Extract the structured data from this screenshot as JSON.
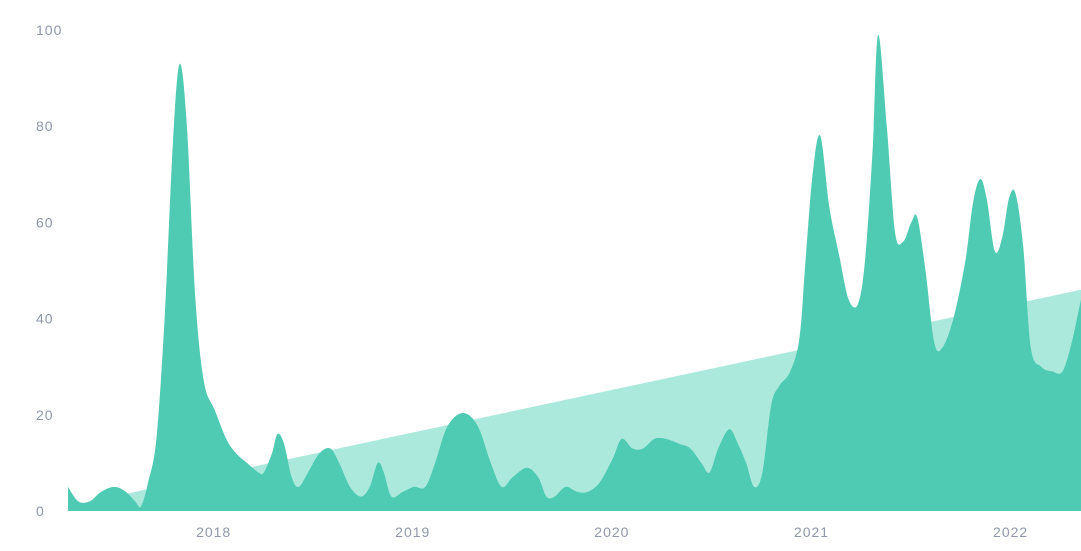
{
  "chart_data": {
    "type": "area",
    "ylim": [
      0,
      100
    ],
    "xlim": [
      "2017-05-01",
      "2022-06-01"
    ],
    "y_ticks": [
      "0",
      "20",
      "40",
      "60",
      "80",
      "100"
    ],
    "x_ticks": [
      {
        "label": "2018",
        "date": "2018-01-01"
      },
      {
        "label": "2019",
        "date": "2019-01-01"
      },
      {
        "label": "2020",
        "date": "2020-01-01"
      },
      {
        "label": "2021",
        "date": "2021-01-01"
      },
      {
        "label": "2022",
        "date": "2022-01-01"
      }
    ],
    "grid": false,
    "series": [
      {
        "id": "interest",
        "color": "#4ecbb2",
        "points": [
          [
            "2017-05-01",
            5
          ],
          [
            "2017-05-20",
            2
          ],
          [
            "2017-06-10",
            2
          ],
          [
            "2017-07-01",
            4
          ],
          [
            "2017-07-25",
            5
          ],
          [
            "2017-08-15",
            4
          ],
          [
            "2017-09-01",
            2
          ],
          [
            "2017-09-12",
            1
          ],
          [
            "2017-09-25",
            6
          ],
          [
            "2017-10-10",
            15
          ],
          [
            "2017-10-25",
            40
          ],
          [
            "2017-11-10",
            78
          ],
          [
            "2017-11-22",
            93
          ],
          [
            "2017-12-05",
            80
          ],
          [
            "2017-12-20",
            45
          ],
          [
            "2018-01-05",
            27
          ],
          [
            "2018-01-25",
            21
          ],
          [
            "2018-02-15",
            15
          ],
          [
            "2018-03-05",
            12
          ],
          [
            "2018-03-25",
            10
          ],
          [
            "2018-04-15",
            8
          ],
          [
            "2018-04-25",
            8
          ],
          [
            "2018-05-10",
            12
          ],
          [
            "2018-05-20",
            16
          ],
          [
            "2018-06-01",
            14
          ],
          [
            "2018-06-15",
            7
          ],
          [
            "2018-06-28",
            5
          ],
          [
            "2018-07-15",
            8
          ],
          [
            "2018-08-05",
            12
          ],
          [
            "2018-08-25",
            13
          ],
          [
            "2018-09-10",
            10
          ],
          [
            "2018-09-30",
            5
          ],
          [
            "2018-10-20",
            3
          ],
          [
            "2018-11-05",
            5
          ],
          [
            "2018-11-20",
            10
          ],
          [
            "2018-12-01",
            8
          ],
          [
            "2018-12-15",
            3
          ],
          [
            "2019-01-05",
            4
          ],
          [
            "2019-01-25",
            5
          ],
          [
            "2019-02-15",
            5
          ],
          [
            "2019-03-05",
            10
          ],
          [
            "2019-03-25",
            17
          ],
          [
            "2019-04-15",
            20
          ],
          [
            "2019-05-05",
            20
          ],
          [
            "2019-05-25",
            17
          ],
          [
            "2019-06-15",
            10
          ],
          [
            "2019-07-05",
            5
          ],
          [
            "2019-07-25",
            7
          ],
          [
            "2019-08-20",
            9
          ],
          [
            "2019-09-10",
            7
          ],
          [
            "2019-09-25",
            3
          ],
          [
            "2019-10-10",
            3
          ],
          [
            "2019-10-30",
            5
          ],
          [
            "2019-11-20",
            4
          ],
          [
            "2019-12-10",
            4
          ],
          [
            "2020-01-01",
            6
          ],
          [
            "2020-01-25",
            11
          ],
          [
            "2020-02-10",
            15
          ],
          [
            "2020-03-01",
            13
          ],
          [
            "2020-03-20",
            13
          ],
          [
            "2020-04-10",
            15
          ],
          [
            "2020-05-01",
            15
          ],
          [
            "2020-05-25",
            14
          ],
          [
            "2020-06-15",
            13
          ],
          [
            "2020-07-05",
            10
          ],
          [
            "2020-07-20",
            8
          ],
          [
            "2020-08-05",
            13
          ],
          [
            "2020-08-25",
            17
          ],
          [
            "2020-09-10",
            14
          ],
          [
            "2020-09-25",
            10
          ],
          [
            "2020-10-10",
            5
          ],
          [
            "2020-10-25",
            8
          ],
          [
            "2020-11-10",
            22
          ],
          [
            "2020-11-25",
            26
          ],
          [
            "2020-12-15",
            29
          ],
          [
            "2021-01-01",
            36
          ],
          [
            "2021-01-12",
            52
          ],
          [
            "2021-01-25",
            70
          ],
          [
            "2021-02-08",
            78
          ],
          [
            "2021-02-25",
            63
          ],
          [
            "2021-03-15",
            53
          ],
          [
            "2021-04-01",
            44
          ],
          [
            "2021-04-18",
            43
          ],
          [
            "2021-05-01",
            52
          ],
          [
            "2021-05-15",
            75
          ],
          [
            "2021-05-25",
            99
          ],
          [
            "2021-06-10",
            80
          ],
          [
            "2021-06-25",
            58
          ],
          [
            "2021-07-10",
            56
          ],
          [
            "2021-07-25",
            60
          ],
          [
            "2021-08-05",
            61
          ],
          [
            "2021-08-20",
            50
          ],
          [
            "2021-09-05",
            35
          ],
          [
            "2021-09-20",
            34
          ],
          [
            "2021-10-10",
            40
          ],
          [
            "2021-11-01",
            52
          ],
          [
            "2021-11-15",
            64
          ],
          [
            "2021-11-28",
            69
          ],
          [
            "2021-12-10",
            65
          ],
          [
            "2021-12-25",
            54
          ],
          [
            "2022-01-08",
            57
          ],
          [
            "2022-01-20",
            65
          ],
          [
            "2022-02-01",
            66
          ],
          [
            "2022-02-15",
            55
          ],
          [
            "2022-03-01",
            34
          ],
          [
            "2022-03-20",
            30
          ],
          [
            "2022-04-10",
            29
          ],
          [
            "2022-04-28",
            29
          ],
          [
            "2022-05-15",
            35
          ],
          [
            "2022-06-01",
            44
          ]
        ]
      },
      {
        "id": "trend",
        "color": "#ace9dd",
        "points": [
          [
            "2017-05-01",
            1
          ],
          [
            "2022-06-01",
            46
          ]
        ]
      }
    ]
  }
}
